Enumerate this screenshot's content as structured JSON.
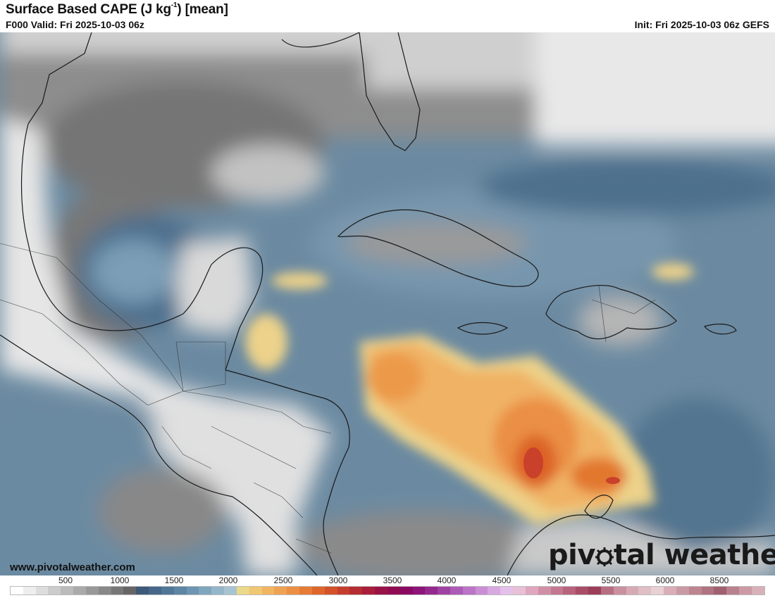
{
  "header": {
    "title_main": "Surface Based CAPE (J kg",
    "title_sup": "-1",
    "title_tail": ") [mean]",
    "valid": "F000 Valid: Fri 2025-10-03 06z",
    "init": "Init: Fri 2025-10-03 06z GEFS"
  },
  "footer": {
    "website": "www.pivotalweather.com",
    "brand_left": "piv",
    "brand_right": "tal weather"
  },
  "colorbar": {
    "units": "J kg-1",
    "labels": [
      "500",
      "1000",
      "1500",
      "2000",
      "2500",
      "3000",
      "3500",
      "4000",
      "4500",
      "5000",
      "5500",
      "6000",
      "8500"
    ],
    "colors": [
      "#ffffff",
      "#eeeeee",
      "#dddddd",
      "#cccccc",
      "#bbbbbb",
      "#aaaaaa",
      "#999999",
      "#888888",
      "#777777",
      "#666666",
      "#3e5a78",
      "#46678a",
      "#517698",
      "#5d85a4",
      "#6d94b0",
      "#80a6bd",
      "#94b6c8",
      "#a8c4d2",
      "#ebd88a",
      "#f0c773",
      "#f1b562",
      "#efa253",
      "#ec8f44",
      "#e67b36",
      "#df662b",
      "#d4512a",
      "#c63d2d",
      "#b52c33",
      "#a81e3b",
      "#9a1345",
      "#8f0c52",
      "#8a0a62",
      "#8d1478",
      "#952a8e",
      "#a042a3",
      "#ac5bb6",
      "#bb74c6",
      "#ca8ed4",
      "#d8a8e0",
      "#e5c0ea",
      "#e9bfd7",
      "#dfa6bd",
      "#d18fa6",
      "#c47890",
      "#b9627c",
      "#a84d68",
      "#9c3e58",
      "#b86e82",
      "#c9909e",
      "#d6aab4",
      "#dfbec6",
      "#e8d0d5",
      "#d9aeb7",
      "#c99aa4",
      "#bd8590",
      "#b07381",
      "#a06070",
      "#b9808e",
      "#cc9aa4",
      "#d8b0b8"
    ]
  },
  "map": {
    "region": "Caribbean / Gulf of Mexico",
    "legend_low_color": "#ffffff",
    "legend_high_color": "#b4262e",
    "ocean_base_color": "#5a7e99"
  }
}
